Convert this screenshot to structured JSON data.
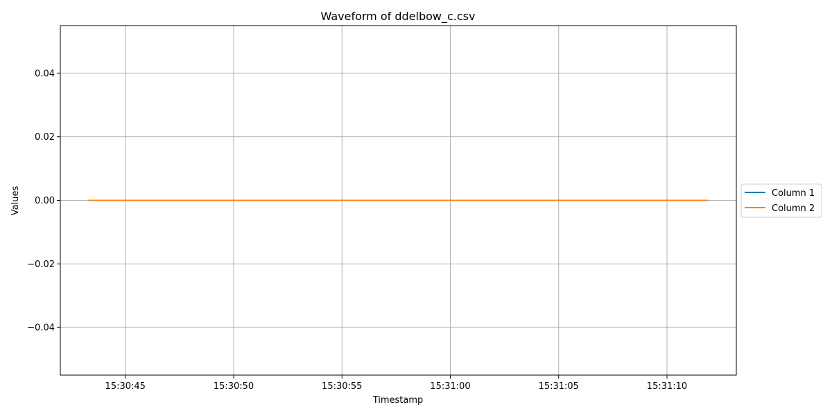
{
  "chart_data": {
    "type": "line",
    "title": "Waveform of ddelbow_c.csv",
    "xlabel": "Timestamp",
    "ylabel": "Values",
    "x_start": "15:30:43.3",
    "x_end": "15:31:11.9",
    "xlim": [
      "15:30:42.0",
      "15:31:13.2"
    ],
    "ylim": [
      -0.055,
      0.055
    ],
    "x_ticks": [
      "15:30:45",
      "15:30:50",
      "15:30:55",
      "15:31:00",
      "15:31:05",
      "15:31:10"
    ],
    "y_ticks": [
      0.04,
      0.02,
      0.0,
      -0.02,
      -0.04
    ],
    "y_tick_labels": [
      "0.04",
      "0.02",
      "0.00",
      "−0.02",
      "−0.04"
    ],
    "grid": true,
    "legend_position": "center-right-outside",
    "series": [
      {
        "name": "Column 1",
        "color": "#1f77b4",
        "values": [
          0,
          0
        ]
      },
      {
        "name": "Column 2",
        "color": "#ff7f0e",
        "values": [
          0,
          0
        ]
      }
    ]
  }
}
